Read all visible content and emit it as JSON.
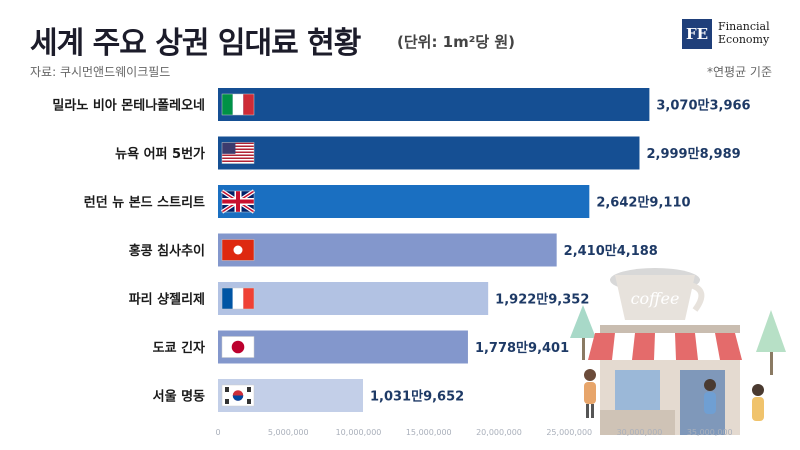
{
  "header": {
    "title": "세계 주요 상권 임대료 현황",
    "unit": "(단위: 1m²당 원)",
    "source": "자료: 쿠시먼앤드웨이크필드",
    "note": "*연평균 기준"
  },
  "logo": {
    "mark": "FE",
    "line1": "Financial",
    "line2": "Economy"
  },
  "illustration": {
    "sign_text": "coffee"
  },
  "colors": {
    "dark_blue": "#154f93",
    "mid_blue": "#1a6fc1",
    "periwinkle": "#8397cc",
    "light_periwinkle": "#b2c2e3",
    "value_text": "#1e3a66"
  },
  "chart_data": {
    "type": "bar",
    "orientation": "horizontal",
    "title": "세계 주요 상권 임대료 현황",
    "unit": "(단위: 1m²당 원)",
    "categories": [
      "밀라노 비아 몬테나폴레오네",
      "뉴욕 어퍼 5번가",
      "런던 뉴 본드 스트리트",
      "홍콩 침사추이",
      "파리 샹젤리제",
      "도쿄 긴자",
      "서울 명동"
    ],
    "flags": [
      "italy-flag-icon",
      "usa-flag-icon",
      "uk-flag-icon",
      "hong-kong-flag-icon",
      "france-flag-icon",
      "japan-flag-icon",
      "korea-flag-icon"
    ],
    "values": [
      30703966,
      29998989,
      26429110,
      24104188,
      19229352,
      17789401,
      10319652
    ],
    "value_labels": [
      "3,070만3,966",
      "2,999만8,989",
      "2,642만9,110",
      "2,410만4,188",
      "1,922만9,352",
      "1,778만9,401",
      "1,031만9,652"
    ],
    "bar_colors": [
      "#154f93",
      "#154f93",
      "#1a6fc1",
      "#8397cc",
      "#b2c2e3",
      "#8397cc",
      "#c3cfe8"
    ],
    "x_ticks": [
      0,
      5000000,
      10000000,
      15000000,
      20000000,
      25000000,
      30000000,
      35000000
    ],
    "x_tick_labels": [
      "0",
      "5,000,000",
      "10,000,000",
      "15,000,000",
      "20,000,000",
      "25,000,000",
      "30,000,000",
      "35,000,000"
    ],
    "xlim": [
      0,
      35000000
    ],
    "grid": false,
    "legend": "none"
  }
}
